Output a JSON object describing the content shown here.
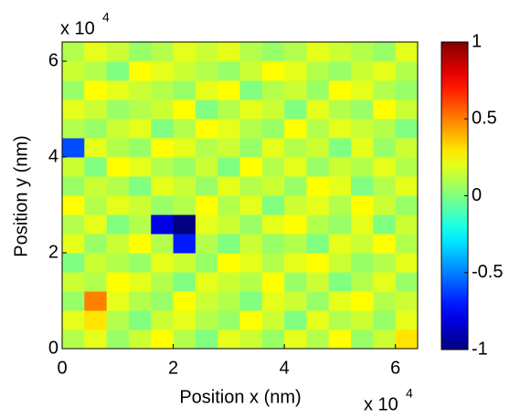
{
  "chart_data": {
    "type": "heatmap",
    "colormap": "jet",
    "xlabel": "Position x (nm)",
    "ylabel": "Position y (nm)",
    "x_multiplier": {
      "base": "x 10",
      "exponent": "4"
    },
    "y_multiplier": {
      "base": "x 10",
      "exponent": "4"
    },
    "xlim": [
      0,
      64000
    ],
    "ylim": [
      0,
      64000
    ],
    "xticks": [
      {
        "value": 0,
        "label": "0"
      },
      {
        "value": 20000,
        "label": "2"
      },
      {
        "value": 40000,
        "label": "4"
      },
      {
        "value": 60000,
        "label": "6"
      }
    ],
    "yticks": [
      {
        "value": 0,
        "label": "0"
      },
      {
        "value": 20000,
        "label": "2"
      },
      {
        "value": 40000,
        "label": "4"
      },
      {
        "value": 60000,
        "label": "6"
      }
    ],
    "clim": [
      -1,
      1
    ],
    "cticks": [
      -1,
      -0.5,
      0,
      0.5,
      1
    ],
    "x": [
      2000,
      6000,
      10000,
      14000,
      18000,
      22000,
      26000,
      30000,
      34000,
      38000,
      42000,
      46000,
      50000,
      54000,
      58000,
      62000
    ],
    "y": [
      2000,
      6000,
      10000,
      14000,
      18000,
      22000,
      26000,
      30000,
      34000,
      38000,
      42000,
      46000,
      50000,
      54000,
      58000,
      62000
    ],
    "z": [
      [
        0.1,
        0.2,
        0.05,
        0.15,
        0.25,
        0.1,
        0.0,
        0.2,
        0.15,
        0.05,
        0.2,
        0.1,
        0.25,
        0.05,
        0.15,
        0.3
      ],
      [
        0.2,
        0.3,
        0.1,
        0.0,
        0.15,
        0.2,
        0.1,
        0.05,
        0.25,
        0.15,
        0.0,
        0.2,
        0.1,
        0.15,
        0.05,
        0.2
      ],
      [
        0.05,
        0.5,
        0.2,
        0.1,
        0.05,
        0.25,
        0.15,
        0.1,
        0.0,
        0.2,
        0.15,
        0.05,
        0.2,
        0.25,
        0.1,
        0.15
      ],
      [
        0.15,
        0.1,
        0.25,
        0.2,
        0.1,
        0.0,
        0.2,
        0.15,
        0.1,
        0.25,
        0.05,
        0.15,
        0.0,
        0.1,
        0.2,
        0.05
      ],
      [
        0.0,
        0.15,
        0.1,
        0.05,
        0.2,
        0.15,
        0.05,
        0.25,
        0.2,
        0.1,
        0.2,
        0.25,
        0.15,
        0.05,
        0.1,
        0.2
      ],
      [
        0.2,
        0.05,
        0.15,
        0.25,
        0.1,
        -0.7,
        0.1,
        0.0,
        0.15,
        0.05,
        0.1,
        0.0,
        0.2,
        0.15,
        0.25,
        0.1
      ],
      [
        0.1,
        0.2,
        0.0,
        0.1,
        -0.8,
        -1,
        0.2,
        0.15,
        0.05,
        0.2,
        0.25,
        0.1,
        0.05,
        0.2,
        0.0,
        0.15
      ],
      [
        0.25,
        0.1,
        0.2,
        0.15,
        0.05,
        0.1,
        0.25,
        0.1,
        0.2,
        0.0,
        0.15,
        0.2,
        0.1,
        0.25,
        0.15,
        0.05
      ],
      [
        0.05,
        0.15,
        0.1,
        0.0,
        0.2,
        0.15,
        0.05,
        0.2,
        0.1,
        0.15,
        0.05,
        0.25,
        0.2,
        0.0,
        0.1,
        0.2
      ],
      [
        0.15,
        0.0,
        0.25,
        0.2,
        0.1,
        0.05,
        0.15,
        0.0,
        0.25,
        0.1,
        0.2,
        0.05,
        0.15,
        0.1,
        0.2,
        0.1
      ],
      [
        -0.6,
        0.2,
        0.1,
        0.05,
        0.25,
        0.2,
        0.1,
        0.15,
        0.05,
        0.2,
        0.1,
        0.15,
        0.0,
        0.2,
        0.05,
        0.15
      ],
      [
        0.1,
        0.05,
        0.15,
        0.2,
        0.0,
        0.1,
        0.25,
        0.2,
        0.1,
        0.05,
        0.25,
        0.1,
        0.2,
        0.15,
        0.1,
        0.0
      ],
      [
        0.2,
        0.15,
        0.05,
        0.1,
        0.15,
        0.25,
        0.0,
        0.1,
        0.2,
        0.15,
        0.0,
        0.2,
        0.1,
        0.05,
        0.25,
        0.15
      ],
      [
        0.05,
        0.25,
        0.2,
        0.15,
        0.1,
        0.05,
        0.2,
        0.25,
        0.0,
        0.1,
        0.15,
        0.05,
        0.25,
        0.2,
        0.1,
        0.05
      ],
      [
        0.15,
        0.1,
        0.0,
        0.25,
        0.2,
        0.15,
        0.1,
        0.05,
        0.15,
        0.25,
        0.2,
        0.1,
        0.05,
        0.15,
        0.2,
        0.1
      ],
      [
        0.1,
        0.2,
        0.15,
        0.05,
        0.1,
        0.2,
        0.15,
        0.2,
        0.1,
        0.05,
        0.1,
        0.2,
        0.15,
        0.1,
        0.05,
        0.2
      ]
    ]
  }
}
